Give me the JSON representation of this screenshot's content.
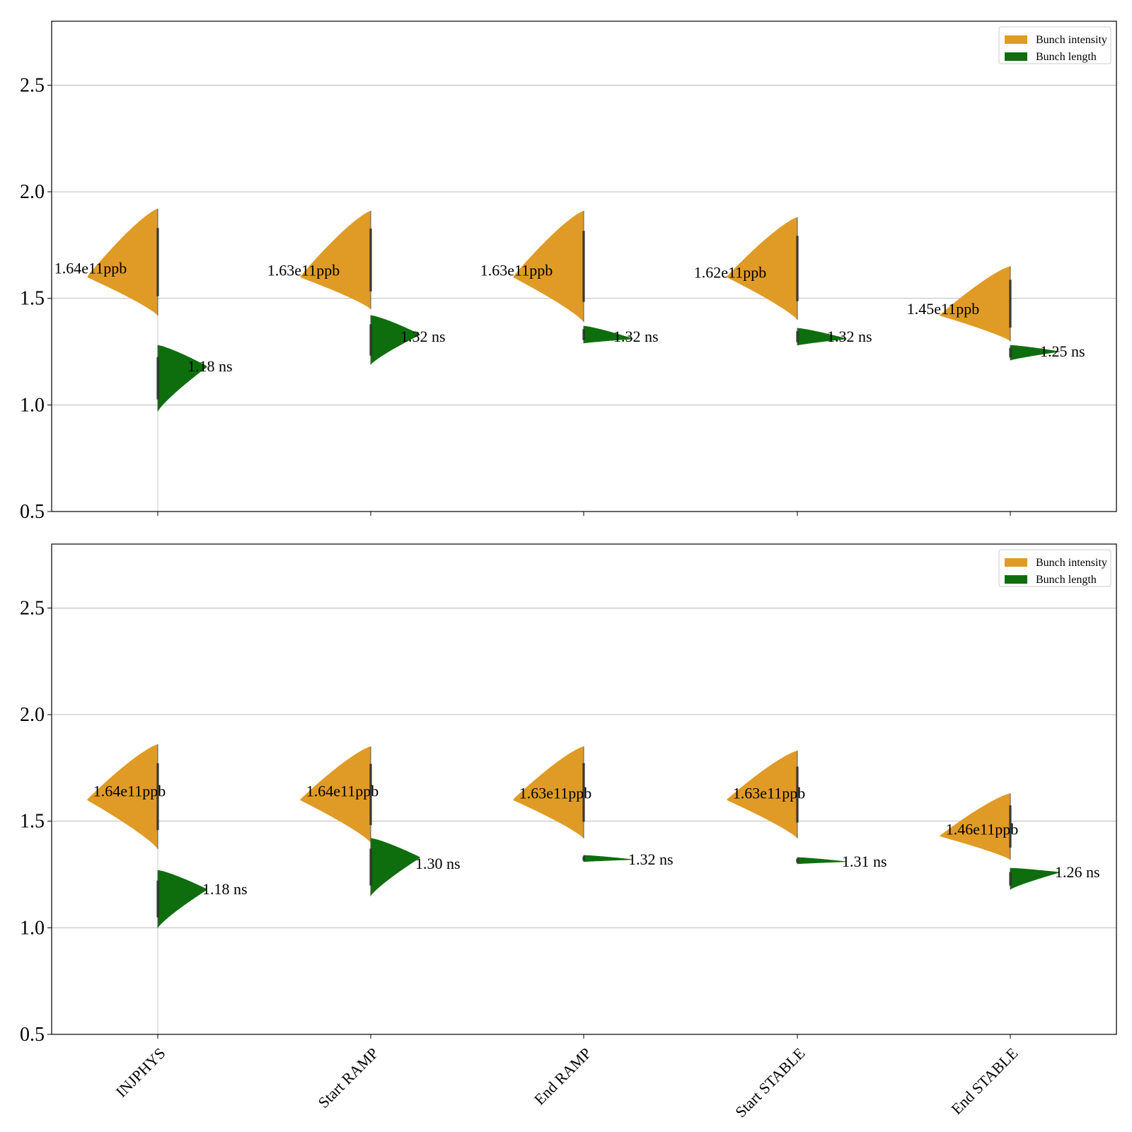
{
  "chart_data": [
    {
      "type": "violin",
      "categories": [
        "INJPHYS",
        "Start RAMP",
        "End RAMP",
        "Start STABLE",
        "End STABLE"
      ],
      "ylim": [
        0.5,
        2.8
      ],
      "yticks": [
        "0.5",
        "1.0",
        "1.5",
        "2.0",
        "2.5"
      ],
      "show_xtick_labels": false,
      "grid": "horizontal",
      "legend_position": "top-right",
      "legend": [
        "Bunch intensity",
        "Bunch length"
      ],
      "series": [
        {
          "name": "Bunch intensity",
          "color": "#e09b26",
          "side": "left",
          "median_values": [
            1.64,
            1.63,
            1.63,
            1.62,
            1.45
          ],
          "data_labels": [
            "1.64e11ppb",
            "1.63e11ppb",
            "1.63e11ppb",
            "1.62e11ppb",
            "1.45e11ppb"
          ],
          "ranges": [
            [
              1.42,
              1.92
            ],
            [
              1.45,
              1.91
            ],
            [
              1.39,
              1.91
            ],
            [
              1.4,
              1.88
            ],
            [
              1.3,
              1.65
            ]
          ],
          "peaks": [
            1.6,
            1.6,
            1.6,
            1.6,
            1.42
          ]
        },
        {
          "name": "Bunch length",
          "color": "#0e6e0e",
          "side": "right",
          "median_values": [
            1.18,
            1.32,
            1.32,
            1.32,
            1.25
          ],
          "data_labels": [
            "1.18 ns",
            "1.32 ns",
            "1.32 ns",
            "1.32 ns",
            "1.25 ns"
          ],
          "ranges": [
            [
              0.97,
              1.28
            ],
            [
              1.19,
              1.42
            ],
            [
              1.29,
              1.37
            ],
            [
              1.28,
              1.36
            ],
            [
              1.21,
              1.28
            ]
          ],
          "peaks": [
            1.18,
            1.33,
            1.31,
            1.31,
            1.25
          ]
        }
      ]
    },
    {
      "type": "violin",
      "categories": [
        "INJPHYS",
        "Start RAMP",
        "End RAMP",
        "Start STABLE",
        "End STABLE"
      ],
      "ylim": [
        0.5,
        2.8
      ],
      "yticks": [
        "0.5",
        "1.0",
        "1.5",
        "2.0",
        "2.5"
      ],
      "show_xtick_labels": true,
      "grid": "horizontal",
      "legend_position": "top-right",
      "legend": [
        "Bunch intensity",
        "Bunch length"
      ],
      "series": [
        {
          "name": "Bunch intensity",
          "color": "#e09b26",
          "side": "left",
          "median_values": [
            1.64,
            1.64,
            1.63,
            1.63,
            1.46
          ],
          "data_labels": [
            "1.64e11ppb",
            "1.64e11ppb",
            "1.63e11ppb",
            "1.63e11ppb",
            "1.46e11ppb"
          ],
          "ranges": [
            [
              1.37,
              1.86
            ],
            [
              1.4,
              1.85
            ],
            [
              1.42,
              1.85
            ],
            [
              1.42,
              1.83
            ],
            [
              1.32,
              1.63
            ]
          ],
          "peaks": [
            1.6,
            1.6,
            1.6,
            1.6,
            1.43
          ]
        },
        {
          "name": "Bunch length",
          "color": "#0e6e0e",
          "side": "right",
          "median_values": [
            1.18,
            1.3,
            1.32,
            1.31,
            1.26
          ],
          "data_labels": [
            "1.18 ns",
            "1.30 ns",
            "1.32 ns",
            "1.31 ns",
            "1.26 ns"
          ],
          "ranges": [
            [
              1.0,
              1.27
            ],
            [
              1.15,
              1.42
            ],
            [
              1.31,
              1.34
            ],
            [
              1.3,
              1.33
            ],
            [
              1.18,
              1.28
            ]
          ],
          "peaks": [
            1.18,
            1.33,
            1.32,
            1.31,
            1.26
          ]
        }
      ]
    }
  ]
}
